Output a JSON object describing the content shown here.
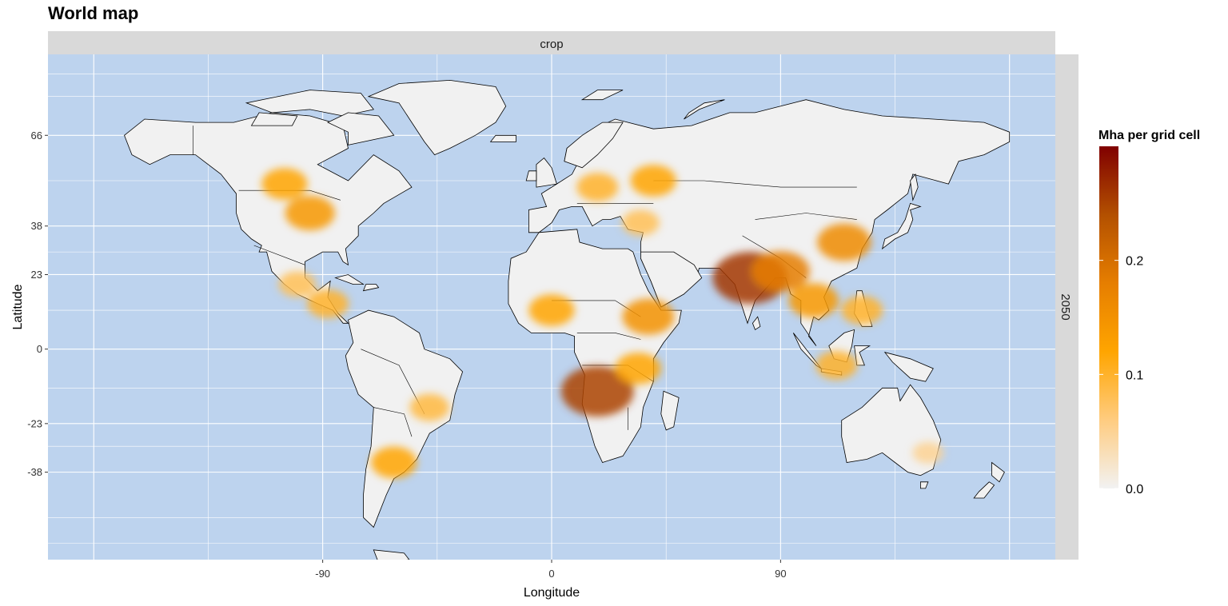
{
  "title": "World map",
  "facet": {
    "top_strip": "crop",
    "right_strip": "2050"
  },
  "axes": {
    "x_label": "Longitude",
    "y_label": "Latitude",
    "x_ticks": [
      -90,
      0,
      90
    ],
    "y_ticks": [
      66,
      38,
      23,
      0,
      -23,
      -38
    ],
    "x_range": [
      -198,
      198
    ],
    "y_range": [
      -65,
      91
    ]
  },
  "colors": {
    "ocean": "#bdd3ee",
    "land_empty": "#f1f1f1",
    "border": "#000000",
    "strip_bg": "#d9d9d9",
    "grid": "#ffffff"
  },
  "legend": {
    "title": "Mha per grid cell",
    "ticks": [
      0.0,
      0.1,
      0.2
    ],
    "tick_labels": [
      "0.0",
      "0.1",
      "0.2"
    ],
    "range": [
      0,
      0.3
    ],
    "colors": [
      "#f2f2f2",
      "#ffcc80",
      "#ffa500",
      "#e67e00",
      "#b35000",
      "#800000"
    ]
  },
  "chart_data": {
    "type": "heatmap",
    "title": "World map",
    "xlabel": "Longitude",
    "ylabel": "Latitude",
    "facet_col": "crop",
    "facet_row": "2050",
    "value_label": "Mha per grid cell",
    "value_range": [
      0,
      0.3
    ],
    "xlim": [
      -198,
      198
    ],
    "ylim": [
      -65,
      91
    ],
    "hotspots": [
      {
        "region": "US Corn Belt / Great Plains",
        "lon": -95,
        "lat": 42,
        "value": 0.14
      },
      {
        "region": "Canadian Prairies",
        "lon": -105,
        "lat": 51,
        "value": 0.12
      },
      {
        "region": "Mexico",
        "lon": -100,
        "lat": 20,
        "value": 0.08
      },
      {
        "region": "Central America",
        "lon": -88,
        "lat": 14,
        "value": 0.1
      },
      {
        "region": "Brazil (south/east)",
        "lon": -48,
        "lat": -18,
        "value": 0.09
      },
      {
        "region": "Argentina Pampas",
        "lon": -62,
        "lat": -35,
        "value": 0.12
      },
      {
        "region": "Europe",
        "lon": 18,
        "lat": 50,
        "value": 0.1
      },
      {
        "region": "Ukraine / Russia",
        "lon": 40,
        "lat": 52,
        "value": 0.12
      },
      {
        "region": "Turkey",
        "lon": 35,
        "lat": 39,
        "value": 0.08
      },
      {
        "region": "Sahel / West Africa",
        "lon": 0,
        "lat": 12,
        "value": 0.12
      },
      {
        "region": "Ethiopia",
        "lon": 38,
        "lat": 10,
        "value": 0.15
      },
      {
        "region": "Angola / Zambia",
        "lon": 18,
        "lat": -13,
        "value": 0.25
      },
      {
        "region": "East Africa",
        "lon": 34,
        "lat": -6,
        "value": 0.12
      },
      {
        "region": "India",
        "lon": 78,
        "lat": 22,
        "value": 0.26
      },
      {
        "region": "Bangladesh",
        "lon": 90,
        "lat": 24,
        "value": 0.18
      },
      {
        "region": "Southeast Asia",
        "lon": 103,
        "lat": 15,
        "value": 0.14
      },
      {
        "region": "China",
        "lon": 115,
        "lat": 33,
        "value": 0.16
      },
      {
        "region": "Indonesia",
        "lon": 112,
        "lat": -5,
        "value": 0.1
      },
      {
        "region": "Philippines",
        "lon": 122,
        "lat": 12,
        "value": 0.1
      },
      {
        "region": "Australia (east/southwest)",
        "lon": 148,
        "lat": -32,
        "value": 0.05
      }
    ]
  }
}
